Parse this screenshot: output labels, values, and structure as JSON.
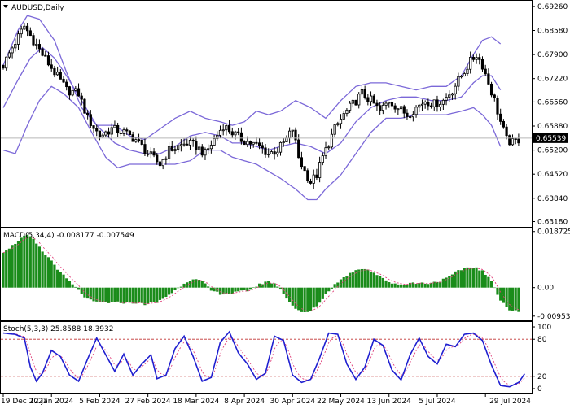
{
  "chart_data": {
    "type": "candlestick",
    "symbol_label": "AUDUSD,Daily",
    "x_labels": [
      "19 Dec 2023",
      "12 Jan 2024",
      "5 Feb 2024",
      "27 Feb 2024",
      "18 Mar 2024",
      "8 Apr 2024",
      "30 Apr 2024",
      "22 May 2024",
      "13 Jun 2024",
      "5 Jul 2024",
      "29 Jul 2024"
    ],
    "price_pane": {
      "ylim": [
        0.631,
        0.6935
      ],
      "ticks": [
        "0.69260",
        "0.68580",
        "0.67900",
        "0.67220",
        "0.66560",
        "0.65880",
        "0.65200",
        "0.64520",
        "0.63840",
        "0.63180"
      ],
      "tick_values": [
        0.6926,
        0.6858,
        0.679,
        0.6722,
        0.6656,
        0.6588,
        0.652,
        0.6452,
        0.6384,
        0.6318
      ],
      "current_price": "0.65539",
      "current_value": 0.65539,
      "close_anchors": [
        [
          0,
          0.676
        ],
        [
          3,
          0.681
        ],
        [
          7,
          0.687
        ],
        [
          10,
          0.683
        ],
        [
          13,
          0.679
        ],
        [
          17,
          0.674
        ],
        [
          21,
          0.669
        ],
        [
          25,
          0.668
        ],
        [
          28,
          0.661
        ],
        [
          32,
          0.656
        ],
        [
          36,
          0.658
        ],
        [
          40,
          0.657
        ],
        [
          44,
          0.655
        ],
        [
          48,
          0.651
        ],
        [
          52,
          0.648
        ],
        [
          55,
          0.652
        ],
        [
          58,
          0.653
        ],
        [
          61,
          0.654
        ],
        [
          64,
          0.653
        ],
        [
          67,
          0.651
        ],
        [
          70,
          0.655
        ],
        [
          73,
          0.659
        ],
        [
          76,
          0.657
        ],
        [
          79,
          0.655
        ],
        [
          82,
          0.654
        ],
        [
          85,
          0.653
        ],
        [
          88,
          0.651
        ],
        [
          91,
          0.652
        ],
        [
          94,
          0.655
        ],
        [
          96,
          0.658
        ],
        [
          98,
          0.65
        ],
        [
          100,
          0.646
        ],
        [
          102,
          0.643
        ],
        [
          104,
          0.645
        ],
        [
          106,
          0.65
        ],
        [
          108,
          0.654
        ],
        [
          110,
          0.658
        ],
        [
          113,
          0.662
        ],
        [
          116,
          0.665
        ],
        [
          119,
          0.668
        ],
        [
          122,
          0.666
        ],
        [
          125,
          0.663
        ],
        [
          128,
          0.666
        ],
        [
          131,
          0.664
        ],
        [
          134,
          0.662
        ],
        [
          137,
          0.664
        ],
        [
          140,
          0.666
        ],
        [
          143,
          0.665
        ],
        [
          146,
          0.666
        ],
        [
          149,
          0.669
        ],
        [
          152,
          0.673
        ],
        [
          155,
          0.677
        ],
        [
          157,
          0.679
        ],
        [
          159,
          0.676
        ],
        [
          161,
          0.671
        ],
        [
          163,
          0.666
        ],
        [
          165,
          0.66
        ],
        [
          167,
          0.655
        ],
        [
          169,
          0.654
        ],
        [
          171,
          0.655
        ]
      ],
      "bollinger": {
        "upper_anchors": [
          [
            0,
            0.676
          ],
          [
            5,
            0.686
          ],
          [
            8,
            0.69
          ],
          [
            12,
            0.689
          ],
          [
            17,
            0.683
          ],
          [
            21,
            0.674
          ],
          [
            26,
            0.664
          ],
          [
            31,
            0.659
          ],
          [
            37,
            0.659
          ],
          [
            42,
            0.656
          ],
          [
            47,
            0.655
          ],
          [
            52,
            0.658
          ],
          [
            57,
            0.661
          ],
          [
            62,
            0.663
          ],
          [
            67,
            0.661
          ],
          [
            72,
            0.66
          ],
          [
            76,
            0.659
          ],
          [
            80,
            0.66
          ],
          [
            84,
            0.663
          ],
          [
            88,
            0.662
          ],
          [
            92,
            0.663
          ],
          [
            97,
            0.666
          ],
          [
            102,
            0.664
          ],
          [
            107,
            0.661
          ],
          [
            112,
            0.666
          ],
          [
            117,
            0.67
          ],
          [
            122,
            0.671
          ],
          [
            127,
            0.671
          ],
          [
            132,
            0.67
          ],
          [
            137,
            0.669
          ],
          [
            142,
            0.67
          ],
          [
            147,
            0.67
          ],
          [
            152,
            0.673
          ],
          [
            156,
            0.679
          ],
          [
            159,
            0.683
          ],
          [
            162,
            0.684
          ],
          [
            165,
            0.682
          ]
        ],
        "middle_anchors": [
          [
            0,
            0.664
          ],
          [
            5,
            0.672
          ],
          [
            9,
            0.678
          ],
          [
            13,
            0.681
          ],
          [
            17,
            0.678
          ],
          [
            21,
            0.673
          ],
          [
            26,
            0.666
          ],
          [
            31,
            0.659
          ],
          [
            37,
            0.654
          ],
          [
            42,
            0.652
          ],
          [
            47,
            0.651
          ],
          [
            52,
            0.651
          ],
          [
            57,
            0.653
          ],
          [
            62,
            0.656
          ],
          [
            67,
            0.657
          ],
          [
            72,
            0.656
          ],
          [
            76,
            0.654
          ],
          [
            80,
            0.654
          ],
          [
            84,
            0.653
          ],
          [
            88,
            0.652
          ],
          [
            92,
            0.653
          ],
          [
            97,
            0.654
          ],
          [
            102,
            0.653
          ],
          [
            107,
            0.651
          ],
          [
            112,
            0.654
          ],
          [
            117,
            0.66
          ],
          [
            122,
            0.664
          ],
          [
            127,
            0.666
          ],
          [
            132,
            0.667
          ],
          [
            137,
            0.667
          ],
          [
            142,
            0.666
          ],
          [
            147,
            0.666
          ],
          [
            152,
            0.667
          ],
          [
            156,
            0.671
          ],
          [
            159,
            0.673
          ],
          [
            162,
            0.673
          ],
          [
            165,
            0.669
          ]
        ],
        "lower_anchors": [
          [
            0,
            0.652
          ],
          [
            4,
            0.651
          ],
          [
            8,
            0.659
          ],
          [
            12,
            0.666
          ],
          [
            16,
            0.67
          ],
          [
            20,
            0.668
          ],
          [
            25,
            0.664
          ],
          [
            30,
            0.656
          ],
          [
            34,
            0.65
          ],
          [
            38,
            0.647
          ],
          [
            42,
            0.648
          ],
          [
            47,
            0.648
          ],
          [
            52,
            0.648
          ],
          [
            57,
            0.648
          ],
          [
            62,
            0.649
          ],
          [
            67,
            0.652
          ],
          [
            72,
            0.652
          ],
          [
            76,
            0.65
          ],
          [
            80,
            0.649
          ],
          [
            84,
            0.648
          ],
          [
            88,
            0.646
          ],
          [
            92,
            0.644
          ],
          [
            97,
            0.641
          ],
          [
            101,
            0.638
          ],
          [
            104,
            0.638
          ],
          [
            107,
            0.641
          ],
          [
            112,
            0.645
          ],
          [
            117,
            0.651
          ],
          [
            122,
            0.657
          ],
          [
            127,
            0.661
          ],
          [
            132,
            0.661
          ],
          [
            137,
            0.662
          ],
          [
            142,
            0.662
          ],
          [
            147,
            0.662
          ],
          [
            152,
            0.663
          ],
          [
            156,
            0.664
          ],
          [
            159,
            0.662
          ],
          [
            162,
            0.659
          ],
          [
            165,
            0.653
          ]
        ]
      }
    },
    "macd_pane": {
      "label": "MACD(5,34,4) -0.008177 -0.007549",
      "ylim": [
        -0.0104,
        0.0192
      ],
      "ticks": [
        "0.018725",
        "0.00",
        "-0.009534"
      ],
      "tick_values": [
        0.018725,
        0.0,
        -0.009534
      ],
      "histogram_anchors": [
        [
          0,
          0.012
        ],
        [
          3,
          0.014
        ],
        [
          6,
          0.0165
        ],
        [
          8,
          0.0175
        ],
        [
          10,
          0.016
        ],
        [
          13,
          0.012
        ],
        [
          16,
          0.009
        ],
        [
          19,
          0.005
        ],
        [
          22,
          0.002
        ],
        [
          25,
          -0.001
        ],
        [
          28,
          -0.004
        ],
        [
          31,
          -0.005
        ],
        [
          35,
          -0.005
        ],
        [
          39,
          -0.005
        ],
        [
          43,
          -0.005
        ],
        [
          47,
          -0.0055
        ],
        [
          51,
          -0.005
        ],
        [
          54,
          -0.003
        ],
        [
          57,
          -0.001
        ],
        [
          60,
          0.0015
        ],
        [
          63,
          0.003
        ],
        [
          66,
          0.002
        ],
        [
          69,
          -0.001
        ],
        [
          72,
          -0.002
        ],
        [
          75,
          -0.002
        ],
        [
          78,
          -0.0015
        ],
        [
          81,
          -0.001
        ],
        [
          84,
          0.0005
        ],
        [
          87,
          0.002
        ],
        [
          90,
          0.0015
        ],
        [
          93,
          -0.002
        ],
        [
          96,
          -0.006
        ],
        [
          99,
          -0.0085
        ],
        [
          102,
          -0.008
        ],
        [
          105,
          -0.005
        ],
        [
          108,
          -0.001
        ],
        [
          111,
          0.002
        ],
        [
          114,
          0.004
        ],
        [
          117,
          0.006
        ],
        [
          120,
          0.0065
        ],
        [
          123,
          0.005
        ],
        [
          126,
          0.003
        ],
        [
          129,
          0.0015
        ],
        [
          132,
          0.001
        ],
        [
          135,
          0.0015
        ],
        [
          138,
          0.0015
        ],
        [
          141,
          0.0015
        ],
        [
          144,
          0.002
        ],
        [
          147,
          0.003
        ],
        [
          150,
          0.005
        ],
        [
          153,
          0.0065
        ],
        [
          156,
          0.007
        ],
        [
          159,
          0.0055
        ],
        [
          162,
          0.002
        ],
        [
          165,
          -0.004
        ],
        [
          168,
          -0.0075
        ],
        [
          171,
          -0.008
        ]
      ]
    },
    "stoch_pane": {
      "label": "Stoch(5,3,3) 25.8588 18.3932",
      "ylim": [
        -4,
        104
      ],
      "ticks": [
        "100",
        "80",
        "20",
        "0"
      ],
      "tick_values": [
        100,
        80,
        20,
        0
      ],
      "levels": [
        80,
        20
      ],
      "main_anchors": [
        [
          0,
          90
        ],
        [
          4,
          88
        ],
        [
          7,
          82
        ],
        [
          9,
          35
        ],
        [
          11,
          12
        ],
        [
          13,
          25
        ],
        [
          16,
          62
        ],
        [
          19,
          52
        ],
        [
          22,
          22
        ],
        [
          25,
          12
        ],
        [
          28,
          48
        ],
        [
          31,
          82
        ],
        [
          34,
          55
        ],
        [
          37,
          28
        ],
        [
          40,
          56
        ],
        [
          43,
          22
        ],
        [
          46,
          40
        ],
        [
          49,
          55
        ],
        [
          51,
          16
        ],
        [
          54,
          22
        ],
        [
          57,
          65
        ],
        [
          60,
          85
        ],
        [
          63,
          52
        ],
        [
          66,
          12
        ],
        [
          69,
          18
        ],
        [
          72,
          75
        ],
        [
          75,
          92
        ],
        [
          78,
          58
        ],
        [
          81,
          40
        ],
        [
          84,
          15
        ],
        [
          87,
          25
        ],
        [
          90,
          85
        ],
        [
          93,
          78
        ],
        [
          96,
          22
        ],
        [
          99,
          10
        ],
        [
          102,
          15
        ],
        [
          105,
          50
        ],
        [
          108,
          90
        ],
        [
          111,
          88
        ],
        [
          114,
          40
        ],
        [
          117,
          15
        ],
        [
          120,
          35
        ],
        [
          123,
          80
        ],
        [
          126,
          70
        ],
        [
          129,
          30
        ],
        [
          132,
          14
        ],
        [
          135,
          55
        ],
        [
          138,
          82
        ],
        [
          141,
          52
        ],
        [
          144,
          40
        ],
        [
          147,
          72
        ],
        [
          150,
          68
        ],
        [
          153,
          88
        ],
        [
          156,
          90
        ],
        [
          159,
          78
        ],
        [
          162,
          38
        ],
        [
          165,
          5
        ],
        [
          168,
          3
        ],
        [
          171,
          10
        ],
        [
          173,
          24
        ]
      ]
    }
  }
}
